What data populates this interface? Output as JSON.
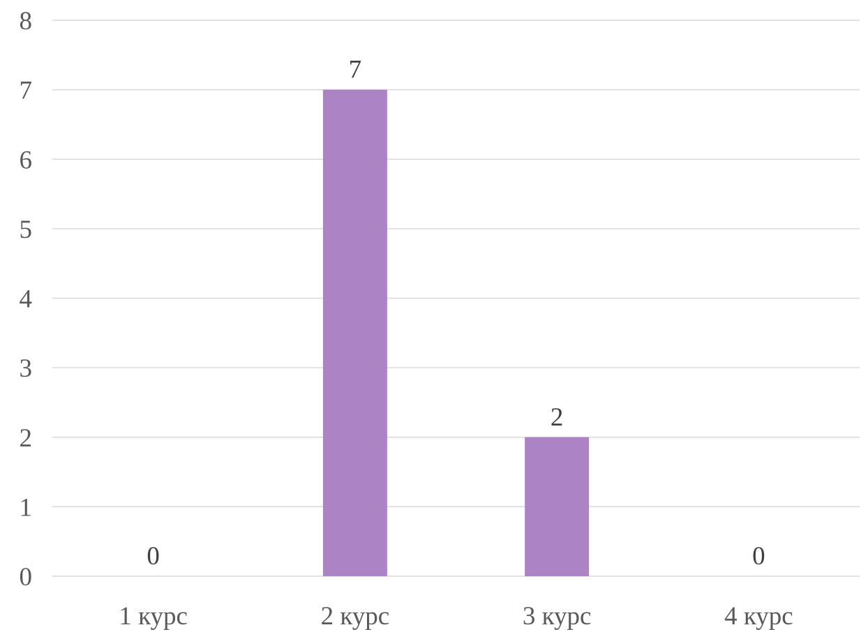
{
  "chart_data": {
    "type": "bar",
    "categories": [
      "1 курс",
      "2 курс",
      "3 курс",
      "4 курс"
    ],
    "values": [
      0,
      7,
      2,
      0
    ],
    "data_labels": [
      "0",
      "7",
      "2",
      "0"
    ],
    "title": "",
    "xlabel": "",
    "ylabel": "",
    "ylim": [
      0,
      8
    ],
    "yticks": [
      0,
      1,
      2,
      3,
      4,
      5,
      6,
      7,
      8
    ],
    "ytick_labels": [
      "0",
      "1",
      "2",
      "3",
      "4",
      "5",
      "6",
      "7",
      "8"
    ],
    "grid": true,
    "legend": "none",
    "bar_color": "#ac84c6"
  }
}
